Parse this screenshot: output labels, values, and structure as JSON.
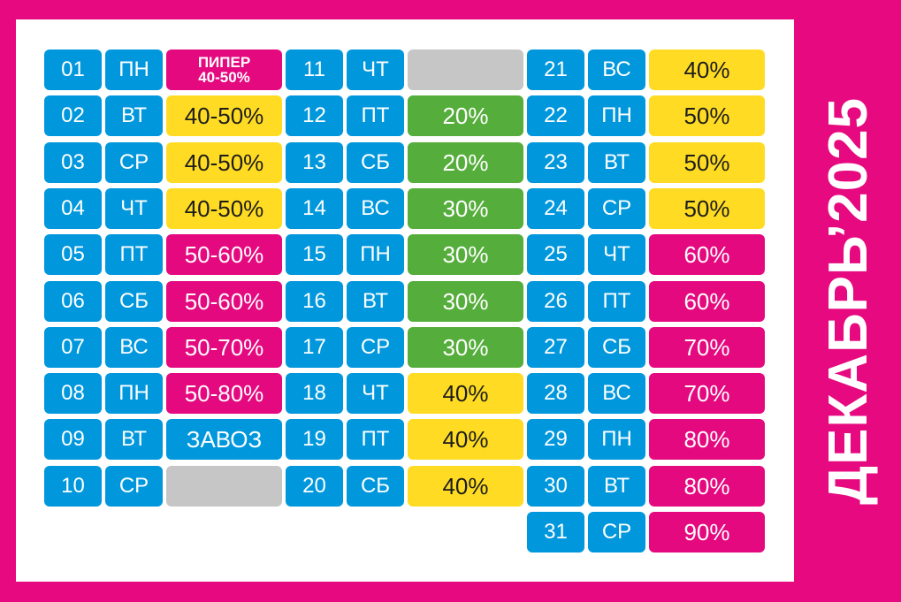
{
  "title": "ДЕКАБРЬ’2025",
  "colors": {
    "background": "#e6097f",
    "blue": "#0097dc",
    "pink": "#e5097f",
    "yellow": "#ffdc23",
    "green": "#55ad3b",
    "gray": "#c6c6c6"
  },
  "columns": [
    [
      {
        "num": "01",
        "day": "ПН",
        "color": "pink",
        "value_lines": [
          "ПИПЕР",
          "40-50%"
        ]
      },
      {
        "num": "02",
        "day": "ВТ",
        "color": "yellow",
        "value": "40-50%"
      },
      {
        "num": "03",
        "day": "СР",
        "color": "yellow",
        "value": "40-50%"
      },
      {
        "num": "04",
        "day": "ЧТ",
        "color": "yellow",
        "value": "40-50%"
      },
      {
        "num": "05",
        "day": "ПТ",
        "color": "pink",
        "value": "50-60%"
      },
      {
        "num": "06",
        "day": "СБ",
        "color": "pink",
        "value": "50-60%"
      },
      {
        "num": "07",
        "day": "ВС",
        "color": "pink",
        "value": "50-70%"
      },
      {
        "num": "08",
        "day": "ПН",
        "color": "pink",
        "value": "50-80%"
      },
      {
        "num": "09",
        "day": "ВТ",
        "color": "blue",
        "value": "ЗАВОЗ"
      },
      {
        "num": "10",
        "day": "СР",
        "color": "gray",
        "value": ""
      }
    ],
    [
      {
        "num": "11",
        "day": "ЧТ",
        "color": "gray",
        "value": ""
      },
      {
        "num": "12",
        "day": "ПТ",
        "color": "green",
        "value": "20%"
      },
      {
        "num": "13",
        "day": "СБ",
        "color": "green",
        "value": "20%"
      },
      {
        "num": "14",
        "day": "ВС",
        "color": "green",
        "value": "30%"
      },
      {
        "num": "15",
        "day": "ПН",
        "color": "green",
        "value": "30%"
      },
      {
        "num": "16",
        "day": "ВТ",
        "color": "green",
        "value": "30%"
      },
      {
        "num": "17",
        "day": "СР",
        "color": "green",
        "value": "30%"
      },
      {
        "num": "18",
        "day": "ЧТ",
        "color": "yellow",
        "value": "40%"
      },
      {
        "num": "19",
        "day": "ПТ",
        "color": "yellow",
        "value": "40%"
      },
      {
        "num": "20",
        "day": "СБ",
        "color": "yellow",
        "value": "40%"
      }
    ],
    [
      {
        "num": "21",
        "day": "ВС",
        "color": "yellow",
        "value": "40%"
      },
      {
        "num": "22",
        "day": "ПН",
        "color": "yellow",
        "value": "50%"
      },
      {
        "num": "23",
        "day": "ВТ",
        "color": "yellow",
        "value": "50%"
      },
      {
        "num": "24",
        "day": "СР",
        "color": "yellow",
        "value": "50%"
      },
      {
        "num": "25",
        "day": "ЧТ",
        "color": "pink",
        "value": "60%"
      },
      {
        "num": "26",
        "day": "ПТ",
        "color": "pink",
        "value": "60%"
      },
      {
        "num": "27",
        "day": "СБ",
        "color": "pink",
        "value": "70%"
      },
      {
        "num": "28",
        "day": "ВС",
        "color": "pink",
        "value": "70%"
      },
      {
        "num": "29",
        "day": "ПН",
        "color": "pink",
        "value": "80%"
      },
      {
        "num": "30",
        "day": "ВТ",
        "color": "pink",
        "value": "80%"
      },
      {
        "num": "31",
        "day": "СР",
        "color": "pink",
        "value": "90%"
      }
    ]
  ]
}
